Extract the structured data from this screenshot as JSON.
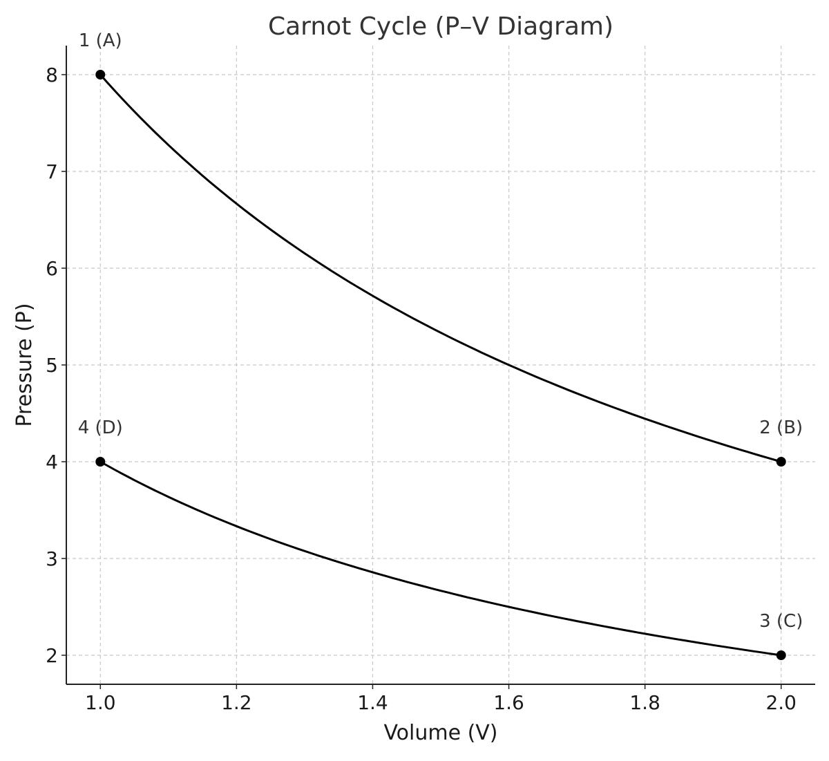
{
  "chart_data": {
    "type": "line",
    "title": "Carnot Cycle (P–V Diagram)",
    "xlabel": "Volume (V)",
    "ylabel": "Pressure (P)",
    "xlim": [
      0.95,
      2.05
    ],
    "ylim": [
      1.7,
      8.3
    ],
    "xticks": [
      1.0,
      1.2,
      1.4,
      1.6,
      1.8,
      2.0
    ],
    "xtick_labels": [
      "1.0",
      "1.2",
      "1.4",
      "1.6",
      "1.8",
      "2.0"
    ],
    "yticks": [
      2,
      3,
      4,
      5,
      6,
      7,
      8
    ],
    "ytick_labels": [
      "2",
      "3",
      "4",
      "5",
      "6",
      "7",
      "8"
    ],
    "grid": true,
    "series": [
      {
        "x": [
          1.0,
          1.1,
          1.2,
          1.3,
          1.4,
          1.5,
          1.6,
          1.7,
          1.8,
          1.9,
          2.0
        ],
        "y": [
          8.0,
          7.273,
          6.667,
          6.154,
          5.714,
          5.333,
          5.0,
          4.706,
          4.444,
          4.211,
          4.0
        ],
        "color": "#000000"
      },
      {
        "x": [
          1.0,
          1.1,
          1.2,
          1.3,
          1.4,
          1.5,
          1.6,
          1.7,
          1.8,
          1.9,
          2.0
        ],
        "y": [
          4.0,
          3.636,
          3.333,
          3.077,
          2.857,
          2.667,
          2.5,
          2.353,
          2.222,
          2.105,
          2.0
        ],
        "color": "#000000"
      }
    ],
    "points": [
      {
        "label": "1 (A)",
        "x": 1.0,
        "y": 8.0
      },
      {
        "label": "2 (B)",
        "x": 2.0,
        "y": 4.0
      },
      {
        "label": "3 (C)",
        "x": 2.0,
        "y": 2.0
      },
      {
        "label": "4 (D)",
        "x": 1.0,
        "y": 4.0
      }
    ]
  }
}
